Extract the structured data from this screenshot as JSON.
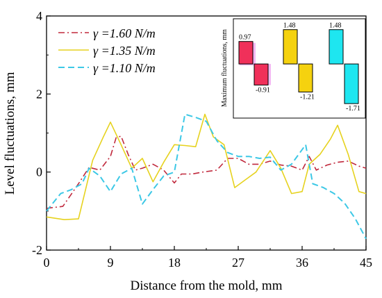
{
  "chart_data": [
    {
      "type": "line",
      "xlabel": "Distance from the mold, mm",
      "ylabel": "Level fluctuations, mm",
      "xlim": [
        0,
        45
      ],
      "ylim": [
        -2,
        4
      ],
      "x_ticks": [
        "0",
        "9",
        "18",
        "27",
        "36",
        "45"
      ],
      "y_ticks": [
        "-2",
        "0",
        "2",
        "4"
      ],
      "legend_position": "top-left",
      "series": [
        {
          "name": "γ =1.60 N/m",
          "style": "dash-dot",
          "color": "#c0283c",
          "x": [
            0,
            2.3,
            4.5,
            6.0,
            7.5,
            9.0,
            9.8,
            10.5,
            11.5,
            12.5,
            13.5,
            15.0,
            16.5,
            18.0,
            19.0,
            20.5,
            22.0,
            24.0,
            25.5,
            27.0,
            28.5,
            30.0,
            31.5,
            33.0,
            34.5,
            36.0,
            37.0,
            38.0,
            39.5,
            41.0,
            42.5,
            44.0,
            45.0
          ],
          "y": [
            -0.93,
            -0.88,
            -0.3,
            0.12,
            0.05,
            0.4,
            0.88,
            0.92,
            0.45,
            0.05,
            0.1,
            0.2,
            0.05,
            -0.28,
            -0.05,
            -0.05,
            0.0,
            0.05,
            0.35,
            0.35,
            0.2,
            0.2,
            0.28,
            0.18,
            0.15,
            0.05,
            0.4,
            0.05,
            0.18,
            0.25,
            0.28,
            0.15,
            0.1
          ]
        },
        {
          "name": "γ =1.35 N/m",
          "style": "solid",
          "color": "#e6d21e",
          "x": [
            0,
            2.5,
            4.5,
            6.5,
            8.0,
            9.0,
            10.5,
            12.0,
            13.5,
            15.0,
            16.5,
            18.0,
            19.5,
            21.0,
            22.3,
            23.5,
            25.0,
            26.5,
            28.0,
            29.5,
            31.5,
            33.0,
            34.5,
            36.0,
            37.0,
            38.5,
            40.0,
            41.0,
            42.5,
            44.0,
            45.0
          ],
          "y": [
            -1.15,
            -1.22,
            -1.2,
            0.3,
            0.9,
            1.28,
            0.7,
            0.1,
            0.35,
            -0.25,
            0.25,
            0.7,
            0.68,
            0.65,
            1.48,
            0.9,
            0.7,
            -0.4,
            -0.2,
            0.0,
            0.55,
            0.1,
            -0.55,
            -0.5,
            0.2,
            0.45,
            0.85,
            1.2,
            0.45,
            -0.5,
            -0.55
          ]
        },
        {
          "name": "γ =1.10 N/m",
          "style": "dash",
          "color": "#3cc8e6",
          "x": [
            0,
            2.0,
            3.5,
            5.0,
            6.0,
            7.5,
            9.0,
            10.5,
            12.0,
            13.5,
            15.0,
            16.5,
            18.0,
            19.5,
            21.0,
            22.5,
            24.0,
            25.5,
            27.0,
            28.5,
            30.0,
            31.5,
            33.0,
            34.5,
            35.5,
            36.5,
            37.5,
            39.0,
            40.5,
            42.0,
            43.5,
            45.0
          ],
          "y": [
            -1.0,
            -0.55,
            -0.45,
            -0.3,
            0.1,
            -0.1,
            -0.5,
            -0.05,
            0.1,
            -0.82,
            -0.45,
            -0.1,
            0.0,
            1.48,
            1.4,
            1.3,
            0.8,
            0.5,
            0.4,
            0.4,
            0.35,
            0.38,
            0.05,
            0.2,
            0.45,
            0.7,
            -0.3,
            -0.4,
            -0.55,
            -0.8,
            -1.2,
            -1.71
          ]
        }
      ]
    },
    {
      "type": "bar",
      "ylabel": "Maximum fluctuations, mm",
      "ylim": [
        -2,
        2
      ],
      "groups": [
        {
          "values": [
            0.97,
            -0.91
          ],
          "labels": [
            "0.97",
            "-0.91"
          ],
          "color": "#f0305a"
        },
        {
          "values": [
            1.48,
            -1.21
          ],
          "labels": [
            "1.48",
            "-1.21"
          ],
          "color": "#f5d20f"
        },
        {
          "values": [
            1.48,
            -1.71
          ],
          "labels": [
            "1.48",
            "-1.71"
          ],
          "color": "#1ee6f0"
        }
      ],
      "highlight_color": "#f4b8f4"
    }
  ]
}
